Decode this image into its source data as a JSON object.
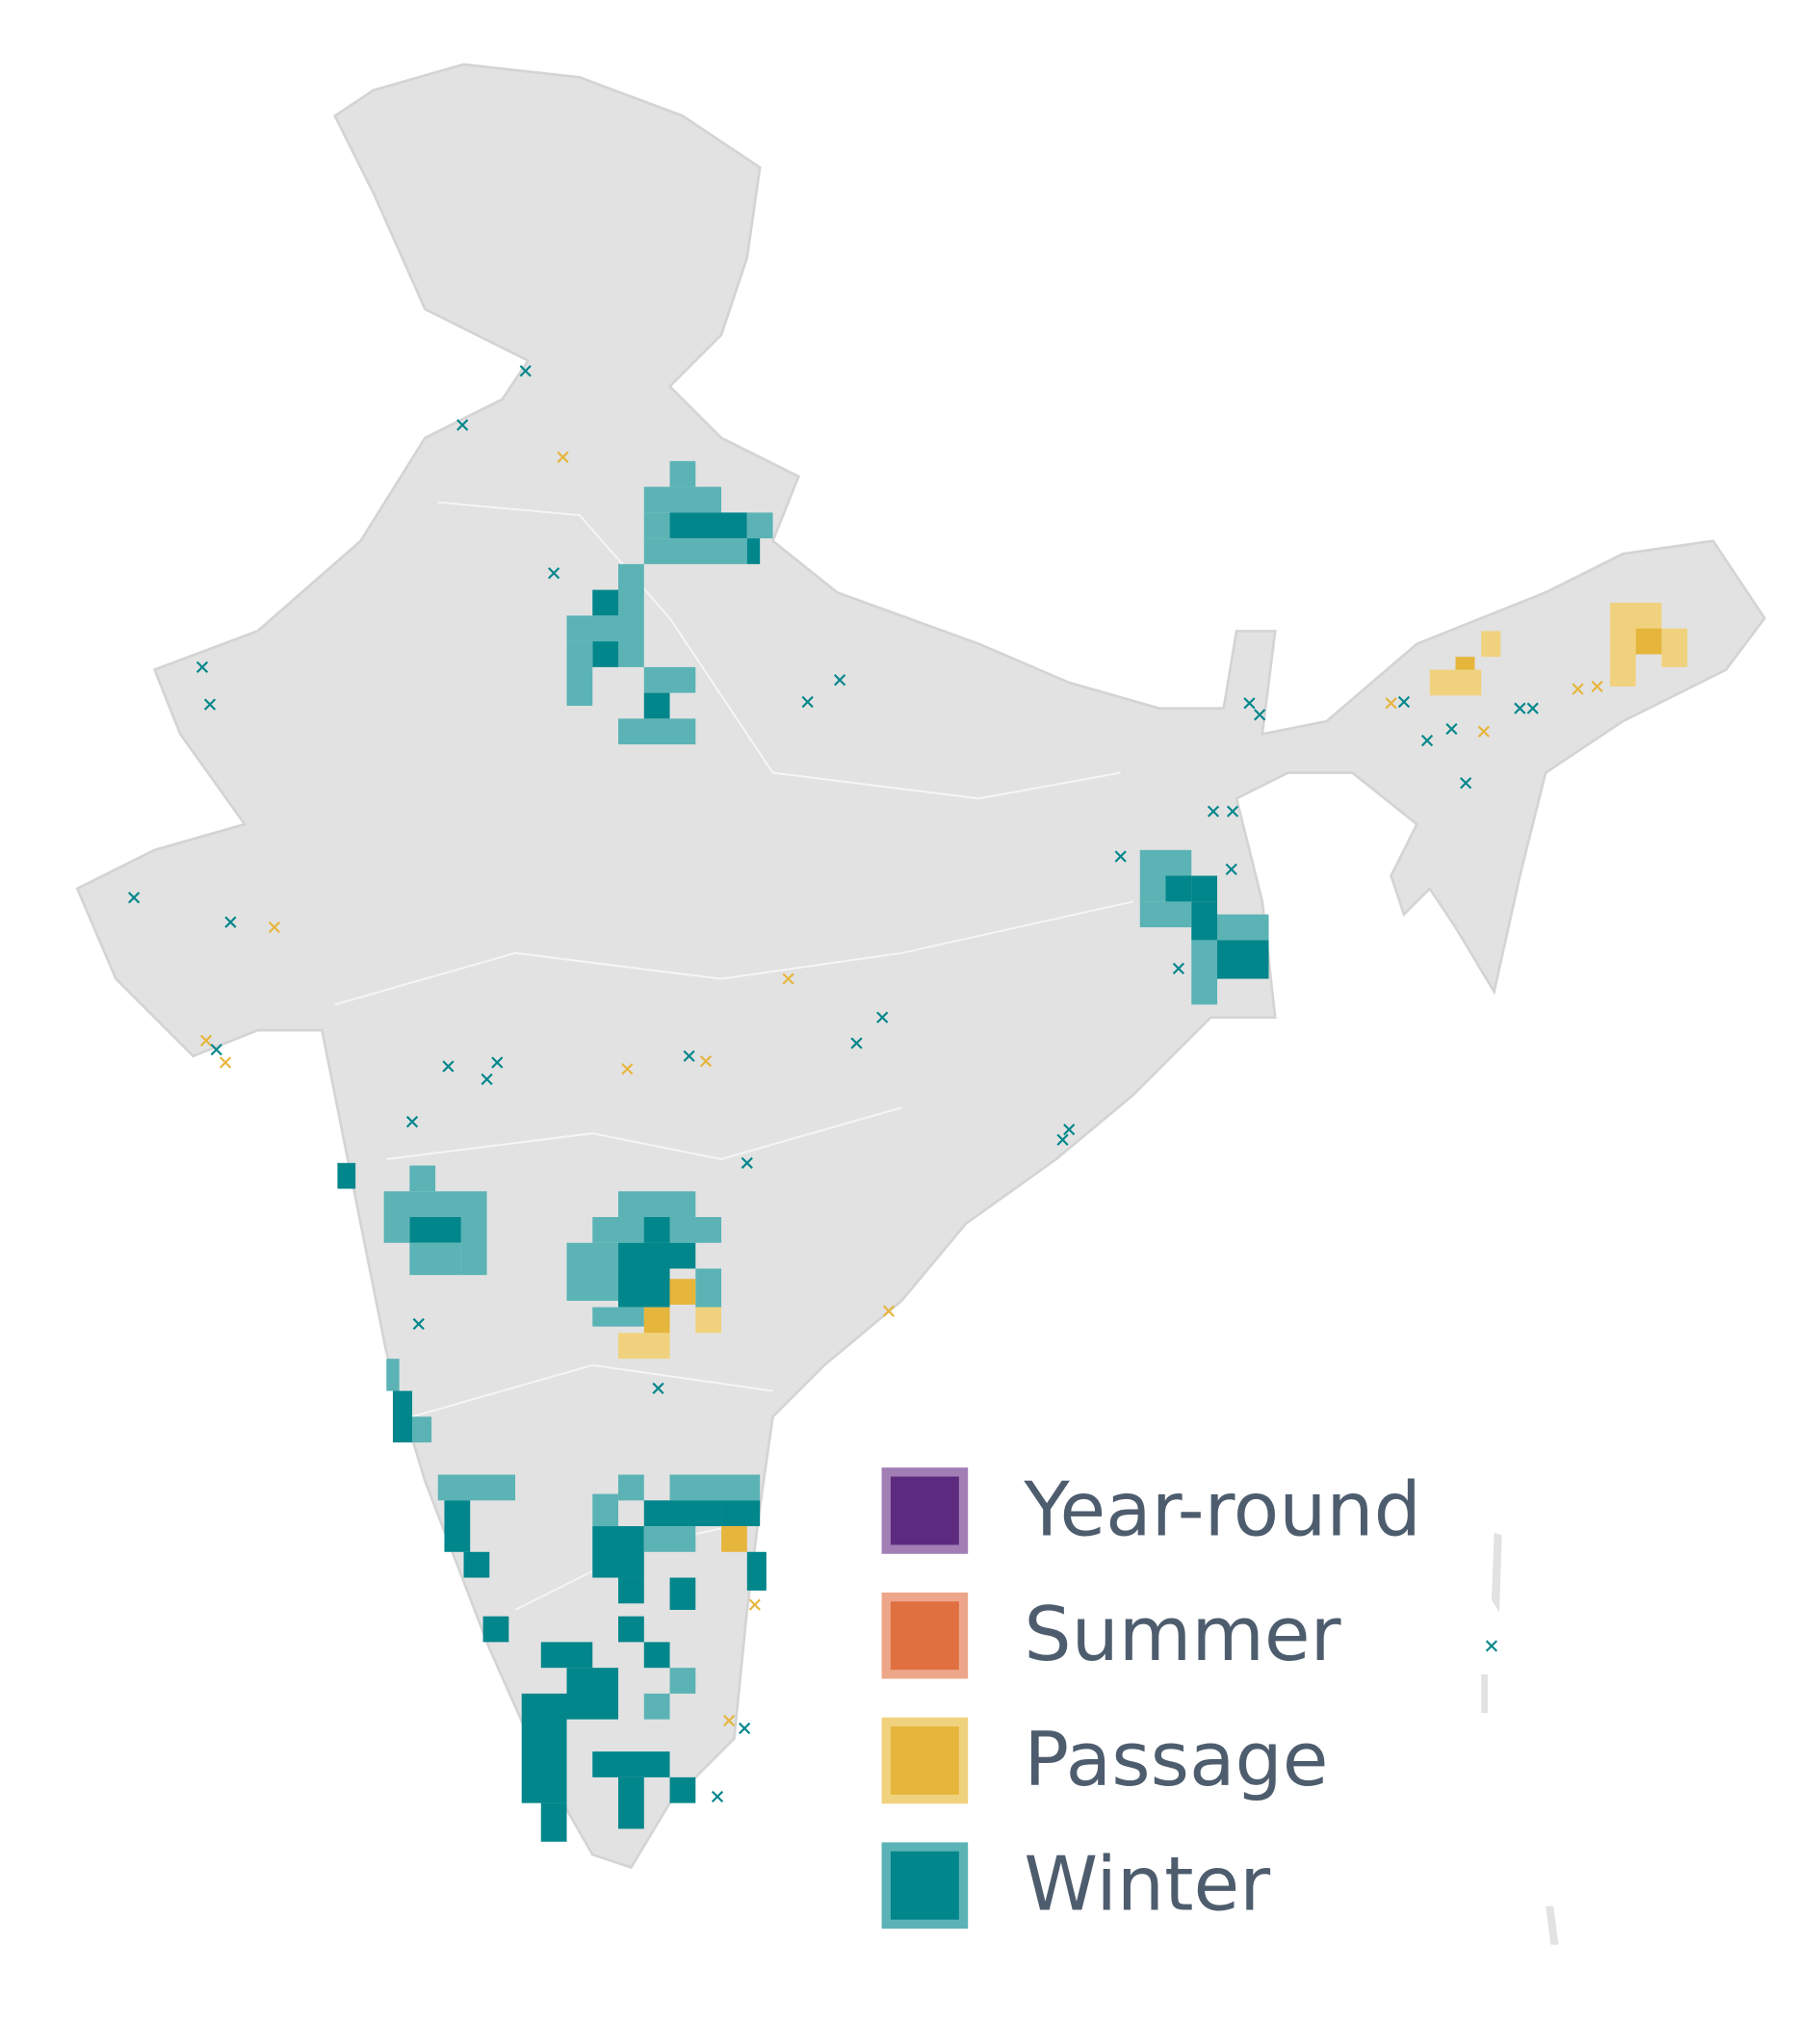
{
  "legend": {
    "items": [
      {
        "label": "Year-round",
        "color": "#5c2a7e",
        "border": "#a17fb5"
      },
      {
        "label": "Summer",
        "color": "#e07040",
        "border": "#eda68a"
      },
      {
        "label": "Passage",
        "color": "#e6b53c",
        "border": "#f0d27e"
      },
      {
        "label": "Winter",
        "color": "#00868b",
        "border": "#5bb3b5"
      }
    ]
  }
}
